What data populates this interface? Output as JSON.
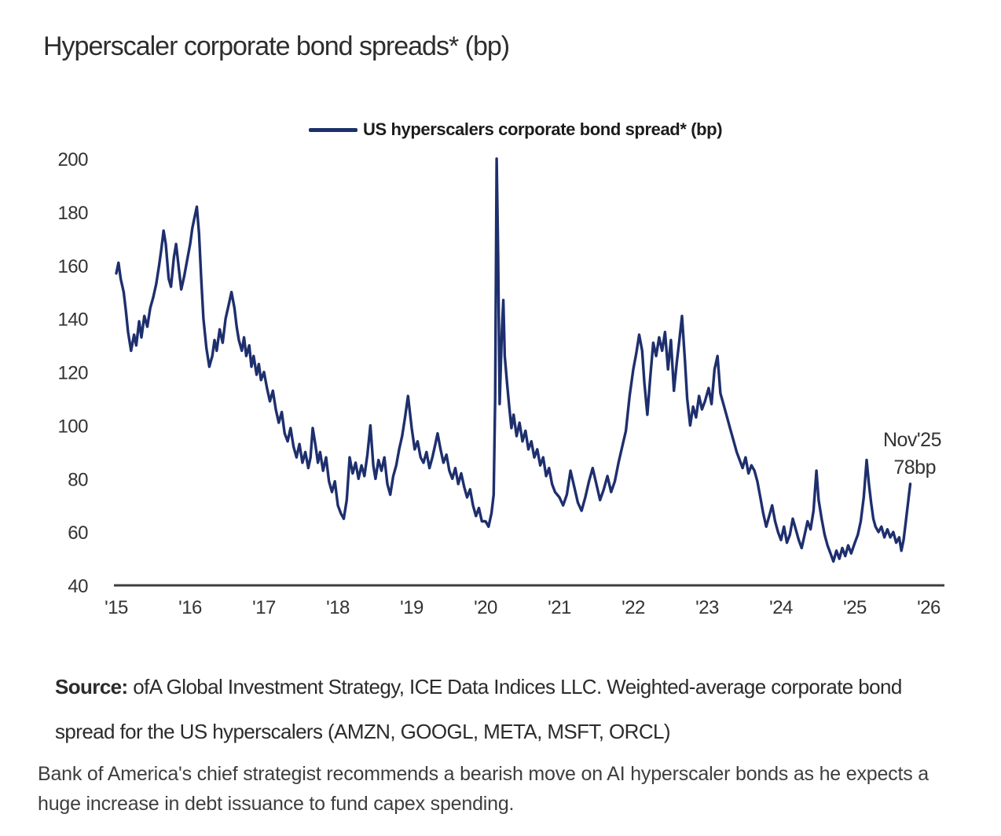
{
  "page": {
    "title": "Hyperscaler corporate bond spreads* (bp)"
  },
  "legend": {
    "label": "US hyperscalers corporate bond spread* (bp)"
  },
  "source": {
    "label": "Source:",
    "text": " ofA Global Investment Strategy, ICE Data Indices LLC. Weighted-average corporate bond spread for the US hyperscalers (AMZN, GOOGL, META, MSFT, ORCL)"
  },
  "caption": "Bank of America's chief strategist recommends a bearish move on AI hyperscaler bonds as he expects a huge increase in debt issuance to fund capex spending.",
  "colors": {
    "line": "#1e2f6d",
    "annotation_red": "#c03a31",
    "axis": "#3d3d3d",
    "tick_text": "#333333"
  },
  "chart_data": {
    "type": "line",
    "title": "Hyperscaler corporate bond spreads* (bp)",
    "ylabel": "",
    "xlabel": "",
    "ylim": [
      40,
      200
    ],
    "y_ticks": [
      200,
      180,
      160,
      140,
      120,
      100,
      80,
      60,
      40
    ],
    "x_ticks": [
      {
        "label": "'15",
        "year": 2015
      },
      {
        "label": "'16",
        "year": 2016
      },
      {
        "label": "'17",
        "year": 2017
      },
      {
        "label": "'18",
        "year": 2018
      },
      {
        "label": "'19",
        "year": 2019
      },
      {
        "label": "'20",
        "year": 2020
      },
      {
        "label": "'21",
        "year": 2021
      },
      {
        "label": "'22",
        "year": 2022
      },
      {
        "label": "'23",
        "year": 2023
      },
      {
        "label": "'24",
        "year": 2024
      },
      {
        "label": "'25",
        "year": 2025
      },
      {
        "label": "'26",
        "year": 2026
      }
    ],
    "grid": false,
    "legend_position": "top-center",
    "annotation": {
      "lines": [
        "Nov'25",
        "78bp"
      ],
      "color": "#c03a31",
      "x": 2025.85,
      "y": 78
    },
    "series": [
      {
        "name": "US hyperscalers corporate bond spread* (bp)",
        "color": "#1e2f6d",
        "points": [
          [
            2015.0,
            157
          ],
          [
            2015.03,
            161
          ],
          [
            2015.06,
            155
          ],
          [
            2015.1,
            150
          ],
          [
            2015.13,
            143
          ],
          [
            2015.16,
            135
          ],
          [
            2015.2,
            128
          ],
          [
            2015.24,
            134
          ],
          [
            2015.27,
            130
          ],
          [
            2015.31,
            139
          ],
          [
            2015.34,
            133
          ],
          [
            2015.38,
            141
          ],
          [
            2015.42,
            137
          ],
          [
            2015.46,
            144
          ],
          [
            2015.5,
            148
          ],
          [
            2015.54,
            153
          ],
          [
            2015.58,
            160
          ],
          [
            2015.61,
            166
          ],
          [
            2015.64,
            173
          ],
          [
            2015.67,
            168
          ],
          [
            2015.71,
            155
          ],
          [
            2015.74,
            152
          ],
          [
            2015.78,
            163
          ],
          [
            2015.81,
            168
          ],
          [
            2015.85,
            158
          ],
          [
            2015.88,
            151
          ],
          [
            2015.92,
            156
          ],
          [
            2015.96,
            162
          ],
          [
            2016.0,
            168
          ],
          [
            2016.03,
            174
          ],
          [
            2016.06,
            178
          ],
          [
            2016.09,
            182
          ],
          [
            2016.12,
            172
          ],
          [
            2016.15,
            155
          ],
          [
            2016.18,
            140
          ],
          [
            2016.22,
            129
          ],
          [
            2016.26,
            122
          ],
          [
            2016.3,
            126
          ],
          [
            2016.33,
            132
          ],
          [
            2016.36,
            128
          ],
          [
            2016.4,
            136
          ],
          [
            2016.44,
            131
          ],
          [
            2016.48,
            140
          ],
          [
            2016.52,
            145
          ],
          [
            2016.56,
            150
          ],
          [
            2016.6,
            144
          ],
          [
            2016.63,
            137
          ],
          [
            2016.66,
            132
          ],
          [
            2016.7,
            128
          ],
          [
            2016.73,
            133
          ],
          [
            2016.76,
            126
          ],
          [
            2016.8,
            130
          ],
          [
            2016.83,
            122
          ],
          [
            2016.86,
            126
          ],
          [
            2016.9,
            119
          ],
          [
            2016.93,
            123
          ],
          [
            2016.96,
            117
          ],
          [
            2017.0,
            120
          ],
          [
            2017.04,
            114
          ],
          [
            2017.08,
            109
          ],
          [
            2017.12,
            113
          ],
          [
            2017.16,
            106
          ],
          [
            2017.2,
            101
          ],
          [
            2017.24,
            105
          ],
          [
            2017.28,
            97
          ],
          [
            2017.32,
            94
          ],
          [
            2017.36,
            99
          ],
          [
            2017.4,
            92
          ],
          [
            2017.44,
            88
          ],
          [
            2017.48,
            93
          ],
          [
            2017.52,
            86
          ],
          [
            2017.56,
            90
          ],
          [
            2017.6,
            84
          ],
          [
            2017.63,
            88
          ],
          [
            2017.66,
            99
          ],
          [
            2017.7,
            92
          ],
          [
            2017.73,
            86
          ],
          [
            2017.76,
            90
          ],
          [
            2017.8,
            83
          ],
          [
            2017.84,
            88
          ],
          [
            2017.88,
            79
          ],
          [
            2017.92,
            75
          ],
          [
            2017.96,
            79
          ],
          [
            2018.0,
            70
          ],
          [
            2018.04,
            67
          ],
          [
            2018.08,
            65
          ],
          [
            2018.12,
            72
          ],
          [
            2018.16,
            88
          ],
          [
            2018.2,
            82
          ],
          [
            2018.24,
            86
          ],
          [
            2018.28,
            80
          ],
          [
            2018.32,
            85
          ],
          [
            2018.36,
            81
          ],
          [
            2018.4,
            89
          ],
          [
            2018.44,
            100
          ],
          [
            2018.48,
            85
          ],
          [
            2018.51,
            80
          ],
          [
            2018.55,
            87
          ],
          [
            2018.59,
            83
          ],
          [
            2018.63,
            88
          ],
          [
            2018.67,
            78
          ],
          [
            2018.71,
            74
          ],
          [
            2018.75,
            81
          ],
          [
            2018.79,
            85
          ],
          [
            2018.83,
            91
          ],
          [
            2018.87,
            96
          ],
          [
            2018.91,
            103
          ],
          [
            2018.95,
            111
          ],
          [
            2019.0,
            99
          ],
          [
            2019.04,
            91
          ],
          [
            2019.08,
            94
          ],
          [
            2019.12,
            88
          ],
          [
            2019.16,
            86
          ],
          [
            2019.2,
            90
          ],
          [
            2019.24,
            84
          ],
          [
            2019.28,
            88
          ],
          [
            2019.32,
            93
          ],
          [
            2019.35,
            97
          ],
          [
            2019.39,
            91
          ],
          [
            2019.43,
            86
          ],
          [
            2019.47,
            89
          ],
          [
            2019.51,
            83
          ],
          [
            2019.55,
            80
          ],
          [
            2019.59,
            84
          ],
          [
            2019.63,
            78
          ],
          [
            2019.67,
            82
          ],
          [
            2019.71,
            77
          ],
          [
            2019.75,
            73
          ],
          [
            2019.79,
            76
          ],
          [
            2019.83,
            70
          ],
          [
            2019.87,
            66
          ],
          [
            2019.91,
            69
          ],
          [
            2019.95,
            64
          ],
          [
            2020.0,
            64
          ],
          [
            2020.04,
            62
          ],
          [
            2020.08,
            67
          ],
          [
            2020.11,
            74
          ],
          [
            2020.13,
            110
          ],
          [
            2020.15,
            200
          ],
          [
            2020.17,
            163
          ],
          [
            2020.19,
            108
          ],
          [
            2020.22,
            135
          ],
          [
            2020.24,
            147
          ],
          [
            2020.26,
            126
          ],
          [
            2020.29,
            116
          ],
          [
            2020.32,
            107
          ],
          [
            2020.35,
            99
          ],
          [
            2020.38,
            104
          ],
          [
            2020.42,
            96
          ],
          [
            2020.46,
            101
          ],
          [
            2020.5,
            94
          ],
          [
            2020.54,
            98
          ],
          [
            2020.58,
            91
          ],
          [
            2020.62,
            94
          ],
          [
            2020.66,
            88
          ],
          [
            2020.7,
            91
          ],
          [
            2020.74,
            85
          ],
          [
            2020.78,
            88
          ],
          [
            2020.82,
            81
          ],
          [
            2020.86,
            84
          ],
          [
            2020.9,
            78
          ],
          [
            2020.94,
            75
          ],
          [
            2021.0,
            73
          ],
          [
            2021.05,
            70
          ],
          [
            2021.1,
            74
          ],
          [
            2021.15,
            83
          ],
          [
            2021.2,
            77
          ],
          [
            2021.25,
            71
          ],
          [
            2021.3,
            68
          ],
          [
            2021.35,
            73
          ],
          [
            2021.4,
            79
          ],
          [
            2021.45,
            84
          ],
          [
            2021.5,
            78
          ],
          [
            2021.55,
            72
          ],
          [
            2021.6,
            76
          ],
          [
            2021.65,
            81
          ],
          [
            2021.7,
            75
          ],
          [
            2021.75,
            79
          ],
          [
            2021.8,
            86
          ],
          [
            2021.85,
            92
          ],
          [
            2021.9,
            98
          ],
          [
            2021.95,
            111
          ],
          [
            2022.0,
            121
          ],
          [
            2022.04,
            127
          ],
          [
            2022.08,
            134
          ],
          [
            2022.12,
            128
          ],
          [
            2022.15,
            116
          ],
          [
            2022.19,
            104
          ],
          [
            2022.23,
            118
          ],
          [
            2022.27,
            131
          ],
          [
            2022.31,
            126
          ],
          [
            2022.35,
            133
          ],
          [
            2022.39,
            128
          ],
          [
            2022.43,
            135
          ],
          [
            2022.47,
            121
          ],
          [
            2022.51,
            132
          ],
          [
            2022.55,
            113
          ],
          [
            2022.59,
            124
          ],
          [
            2022.62,
            131
          ],
          [
            2022.66,
            141
          ],
          [
            2022.7,
            124
          ],
          [
            2022.73,
            110
          ],
          [
            2022.77,
            100
          ],
          [
            2022.81,
            107
          ],
          [
            2022.85,
            103
          ],
          [
            2022.89,
            111
          ],
          [
            2022.93,
            106
          ],
          [
            2022.97,
            109
          ],
          [
            2023.02,
            114
          ],
          [
            2023.06,
            108
          ],
          [
            2023.1,
            121
          ],
          [
            2023.14,
            126
          ],
          [
            2023.18,
            112
          ],
          [
            2023.22,
            108
          ],
          [
            2023.27,
            103
          ],
          [
            2023.31,
            99
          ],
          [
            2023.35,
            95
          ],
          [
            2023.4,
            90
          ],
          [
            2023.44,
            87
          ],
          [
            2023.48,
            84
          ],
          [
            2023.52,
            88
          ],
          [
            2023.56,
            82
          ],
          [
            2023.6,
            85
          ],
          [
            2023.64,
            83
          ],
          [
            2023.68,
            79
          ],
          [
            2023.72,
            73
          ],
          [
            2023.76,
            67
          ],
          [
            2023.8,
            62
          ],
          [
            2023.84,
            66
          ],
          [
            2023.88,
            70
          ],
          [
            2023.92,
            64
          ],
          [
            2023.96,
            60
          ],
          [
            2024.0,
            57
          ],
          [
            2024.04,
            62
          ],
          [
            2024.08,
            56
          ],
          [
            2024.12,
            59
          ],
          [
            2024.16,
            65
          ],
          [
            2024.2,
            61
          ],
          [
            2024.24,
            57
          ],
          [
            2024.28,
            54
          ],
          [
            2024.32,
            59
          ],
          [
            2024.36,
            64
          ],
          [
            2024.4,
            61
          ],
          [
            2024.44,
            68
          ],
          [
            2024.48,
            83
          ],
          [
            2024.51,
            72
          ],
          [
            2024.55,
            65
          ],
          [
            2024.59,
            59
          ],
          [
            2024.63,
            55
          ],
          [
            2024.67,
            52
          ],
          [
            2024.71,
            49
          ],
          [
            2024.75,
            53
          ],
          [
            2024.79,
            50
          ],
          [
            2024.83,
            54
          ],
          [
            2024.87,
            51
          ],
          [
            2024.91,
            55
          ],
          [
            2024.95,
            52
          ],
          [
            2025.0,
            56
          ],
          [
            2025.04,
            59
          ],
          [
            2025.08,
            64
          ],
          [
            2025.12,
            73
          ],
          [
            2025.16,
            87
          ],
          [
            2025.19,
            78
          ],
          [
            2025.22,
            71
          ],
          [
            2025.25,
            65
          ],
          [
            2025.28,
            62
          ],
          [
            2025.32,
            60
          ],
          [
            2025.36,
            62
          ],
          [
            2025.4,
            58
          ],
          [
            2025.44,
            61
          ],
          [
            2025.48,
            58
          ],
          [
            2025.52,
            60
          ],
          [
            2025.56,
            56
          ],
          [
            2025.6,
            58
          ],
          [
            2025.63,
            53
          ],
          [
            2025.66,
            57
          ],
          [
            2025.69,
            64
          ],
          [
            2025.72,
            71
          ],
          [
            2025.75,
            78
          ]
        ]
      }
    ]
  }
}
